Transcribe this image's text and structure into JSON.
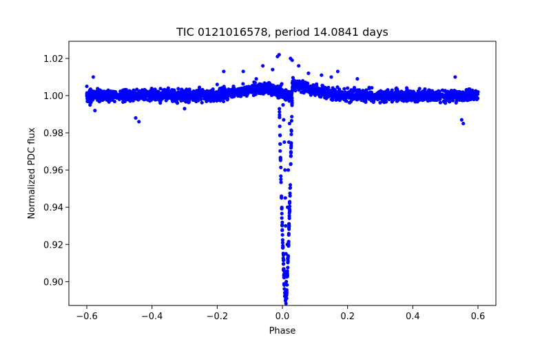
{
  "chart_data": {
    "type": "scatter",
    "title": "TIC 0121016578, period 14.0841 days",
    "xlabel": "Phase",
    "ylabel": "Normalized PDC flux",
    "xlim": [
      -0.655,
      0.655
    ],
    "ylim": [
      0.8872,
      1.0292
    ],
    "xticks": [
      -0.6,
      -0.4,
      -0.2,
      0.0,
      0.2,
      0.4,
      0.6
    ],
    "xtick_labels": [
      "−0.6",
      "−0.4",
      "−0.2",
      "0.0",
      "0.2",
      "0.4",
      "0.6"
    ],
    "yticks": [
      0.9,
      0.92,
      0.94,
      0.96,
      0.98,
      1.0,
      1.02
    ],
    "ytick_labels": [
      "0.90",
      "0.92",
      "0.94",
      "0.96",
      "0.98",
      "1.00",
      "1.02"
    ],
    "grid": false,
    "marker_color": "#0000ff",
    "series": [
      {
        "name": "PDC flux",
        "phase_range": [
          -0.6,
          0.6
        ],
        "baseline_flux": 1.0,
        "scatter_amplitude": 0.003,
        "transit_center_phase": 0.01,
        "transit_min_flux": 0.891,
        "transit_half_width_phase": 0.02,
        "points": [
          [
            -0.6,
            1.005
          ],
          [
            -0.59,
            0.995
          ],
          [
            -0.58,
            1.01
          ],
          [
            -0.575,
            0.992
          ],
          [
            -0.56,
            1.003
          ],
          [
            -0.5,
            0.998
          ],
          [
            -0.45,
            0.988
          ],
          [
            -0.44,
            0.986
          ],
          [
            -0.43,
            1.003
          ],
          [
            -0.4,
            1.002
          ],
          [
            -0.35,
            1.004
          ],
          [
            -0.3,
            0.993
          ],
          [
            -0.25,
            0.998
          ],
          [
            -0.2,
            1.006
          ],
          [
            -0.18,
            1.013
          ],
          [
            -0.15,
            1.005
          ],
          [
            -0.12,
            1.013
          ],
          [
            -0.08,
            1.009
          ],
          [
            -0.06,
            1.016
          ],
          [
            -0.03,
            1.014
          ],
          [
            -0.015,
            1.021
          ],
          [
            -0.01,
            1.022
          ],
          [
            0.0,
            1.0
          ],
          [
            0.002,
            0.995
          ],
          [
            0.004,
            0.987
          ],
          [
            0.006,
            0.975
          ],
          [
            0.008,
            0.96
          ],
          [
            0.009,
            0.945
          ],
          [
            0.01,
            0.93
          ],
          [
            0.011,
            0.915
          ],
          [
            0.012,
            0.9
          ],
          [
            0.013,
            0.891
          ],
          [
            0.014,
            0.905
          ],
          [
            0.015,
            0.92
          ],
          [
            0.016,
            0.94
          ],
          [
            0.018,
            0.96
          ],
          [
            0.02,
            0.975
          ],
          [
            0.022,
            0.985
          ],
          [
            0.025,
            1.02
          ],
          [
            0.03,
            1.019
          ],
          [
            0.05,
            1.016
          ],
          [
            0.08,
            1.012
          ],
          [
            0.12,
            1.011
          ],
          [
            0.15,
            1.01
          ],
          [
            0.17,
            1.013
          ],
          [
            0.2,
            1.004
          ],
          [
            0.23,
            1.009
          ],
          [
            0.25,
            1.002
          ],
          [
            0.3,
            0.999
          ],
          [
            0.35,
            1.004
          ],
          [
            0.4,
            1.001
          ],
          [
            0.45,
            1.003
          ],
          [
            0.5,
            0.996
          ],
          [
            0.53,
            1.01
          ],
          [
            0.55,
            0.987
          ],
          [
            0.555,
            0.985
          ],
          [
            0.57,
            0.998
          ],
          [
            0.6,
            1.002
          ]
        ]
      }
    ]
  }
}
